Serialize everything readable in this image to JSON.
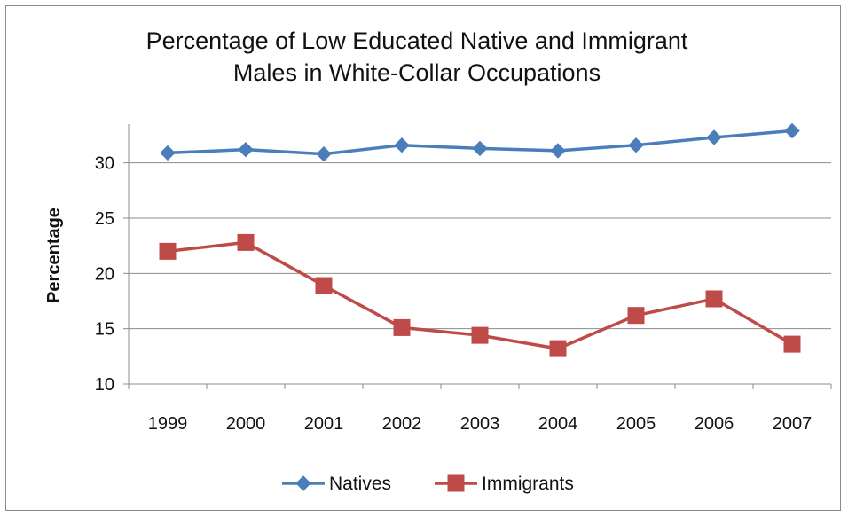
{
  "chart_data": {
    "type": "line",
    "title_lines": [
      "Percentage of Low Educated Native and Immigrant",
      "Males in White-Collar Occupations"
    ],
    "xlabel": "",
    "ylabel": "Percentage",
    "categories": [
      "1999",
      "2000",
      "2001",
      "2002",
      "2003",
      "2004",
      "2005",
      "2006",
      "2007"
    ],
    "ylim": [
      10,
      33.5
    ],
    "yticks": [
      10,
      15,
      20,
      25,
      30
    ],
    "grid": true,
    "legend_position": "bottom",
    "series": [
      {
        "name": "Natives",
        "marker": "diamond",
        "color": "#4a7ebb",
        "values": [
          30.9,
          31.2,
          30.8,
          31.6,
          31.3,
          31.1,
          31.6,
          32.3,
          32.9
        ]
      },
      {
        "name": "Immigrants",
        "marker": "square",
        "color": "#be4b48",
        "values": [
          22.0,
          22.8,
          18.9,
          15.1,
          14.4,
          13.2,
          16.2,
          17.7,
          13.6
        ]
      }
    ]
  }
}
